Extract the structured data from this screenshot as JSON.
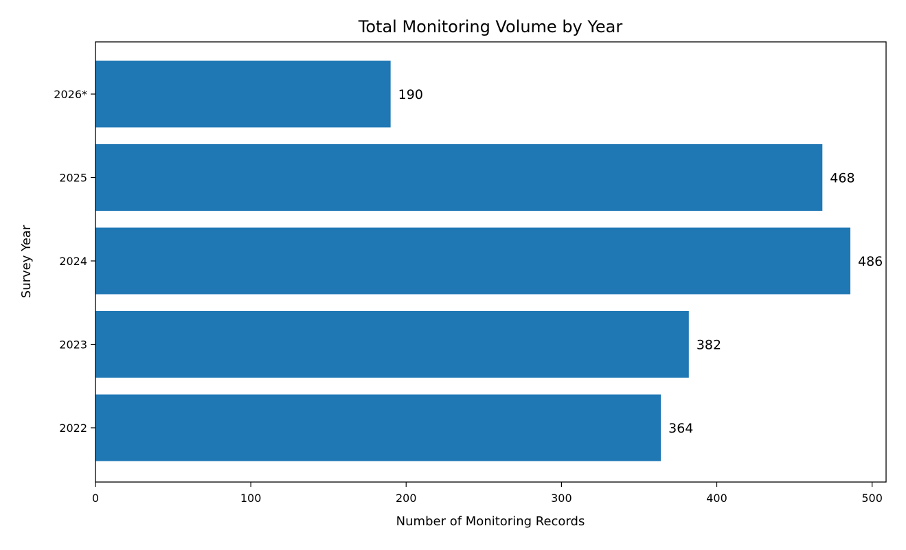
{
  "chart_data": {
    "type": "bar",
    "orientation": "horizontal",
    "title": "Total Monitoring Volume by Year",
    "xlabel": "Number of Monitoring Records",
    "ylabel": "Survey Year",
    "categories": [
      "2022",
      "2023",
      "2024",
      "2025",
      "2026*"
    ],
    "values": [
      364,
      382,
      486,
      468,
      190
    ],
    "data_labels": [
      "364",
      "382",
      "486",
      "468",
      "190"
    ],
    "xlim": [
      0,
      509
    ],
    "x_ticks": [
      0,
      100,
      200,
      300,
      400,
      500
    ],
    "x_tick_labels": [
      "0",
      "100",
      "200",
      "300",
      "400",
      "500"
    ],
    "bar_color": "#1f77b4",
    "grid": false,
    "legend": "none"
  }
}
